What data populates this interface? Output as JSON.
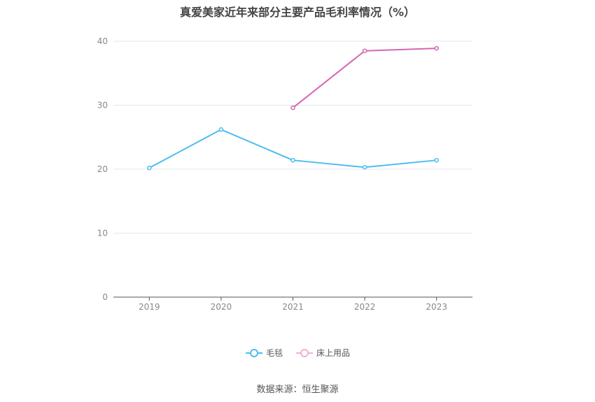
{
  "chart_data": {
    "type": "line",
    "title": "真爱美家近年来部分主要产品毛利率情况（%）",
    "categories": [
      "2019",
      "2020",
      "2021",
      "2022",
      "2023"
    ],
    "series": [
      {
        "name": "毛毯",
        "color": "#4dbdf0",
        "values": [
          20.2,
          26.2,
          21.4,
          20.3,
          21.4
        ]
      },
      {
        "name": "床上用品",
        "color": "#d467ae",
        "values": [
          null,
          null,
          29.6,
          38.5,
          38.9
        ]
      }
    ],
    "ylim": [
      0,
      40
    ],
    "yticks": [
      0,
      10,
      20,
      30,
      40
    ],
    "grid": true,
    "legend_position": "bottom-center"
  },
  "source": "数据来源：恒生聚源"
}
